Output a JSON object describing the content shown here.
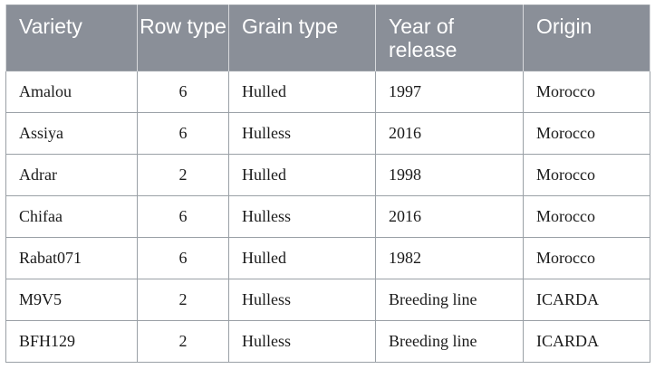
{
  "table": {
    "headers": [
      "Variety",
      "Row type",
      "Grain type",
      "Year of release",
      "Origin"
    ],
    "rows": [
      [
        "Amalou",
        "6",
        "Hulled",
        "1997",
        "Morocco"
      ],
      [
        "Assiya",
        "6",
        "Hulless",
        "2016",
        "Morocco"
      ],
      [
        "Adrar",
        "2",
        "Hulled",
        "1998",
        "Morocco"
      ],
      [
        "Chifaa",
        "6",
        "Hulless",
        "2016",
        "Morocco"
      ],
      [
        "Rabat071",
        "6",
        "Hulled",
        "1982",
        "Morocco"
      ],
      [
        "M9V5",
        "2",
        "Hulless",
        "Breeding line",
        "ICARDA"
      ],
      [
        "BFH129",
        "2",
        "Hulless",
        "Breeding line",
        "ICARDA"
      ]
    ]
  },
  "colors": {
    "header_bg": "#8a8f98",
    "header_text": "#ffffff",
    "border": "#9aa0a6"
  }
}
